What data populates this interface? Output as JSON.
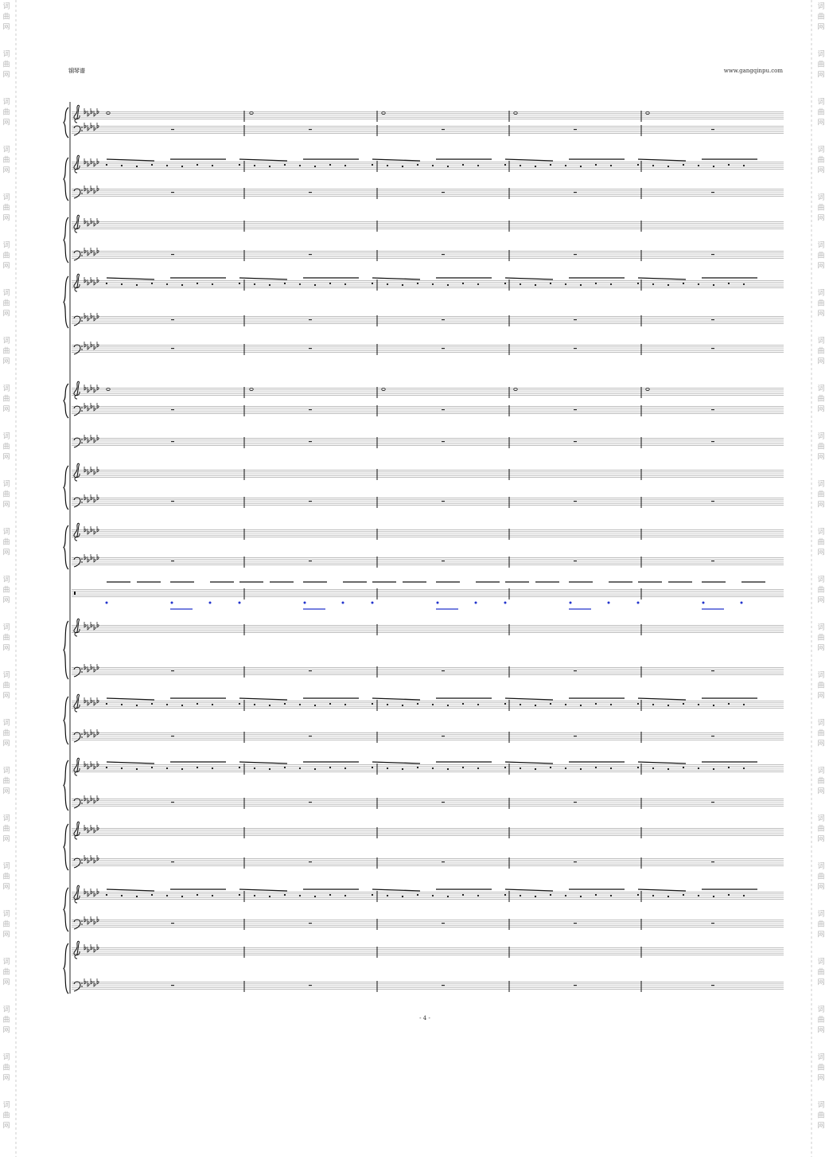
{
  "header": {
    "left": "钢琴谱",
    "right": "www.gangqinpu.com"
  },
  "footer": {
    "page_number": "- 4 -"
  },
  "watermark": {
    "chars": [
      "词",
      "曲",
      "网"
    ]
  }
}
